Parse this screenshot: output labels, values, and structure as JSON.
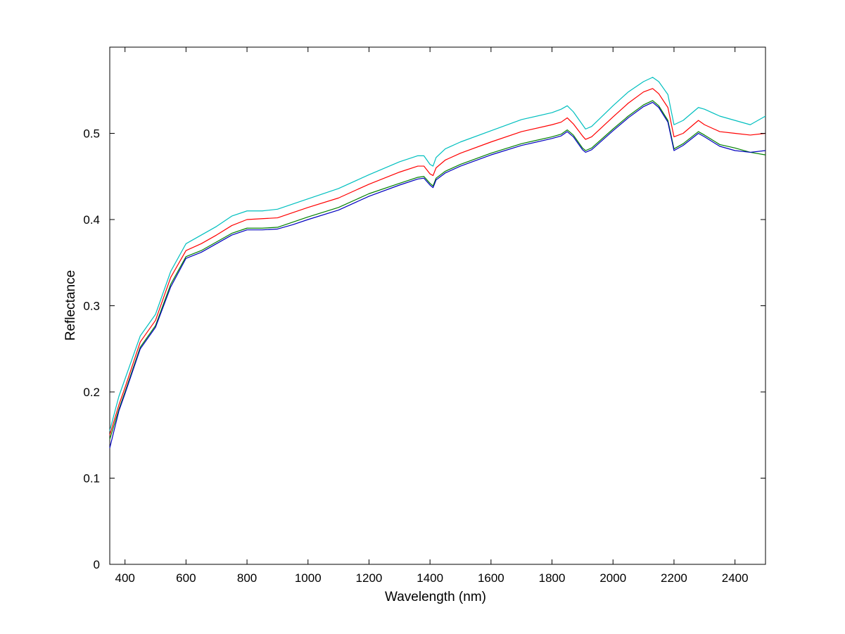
{
  "chart_data": {
    "type": "line",
    "title": "",
    "xlabel": "Wavelength (nm)",
    "ylabel": "Reflectance",
    "xlim": [
      350,
      2500
    ],
    "ylim": [
      0,
      0.6
    ],
    "xticks": [
      400,
      600,
      800,
      1000,
      1200,
      1400,
      1600,
      1800,
      2000,
      2200,
      2400
    ],
    "xtick_labels": [
      "400",
      "600",
      "800",
      "1000",
      "1200",
      "1400",
      "1600",
      "1800",
      "2000",
      "2200",
      "2400"
    ],
    "yticks": [
      0,
      0.1,
      0.2,
      0.3,
      0.4,
      0.5
    ],
    "ytick_labels": [
      "0",
      "0.1",
      "0.2",
      "0.3",
      "0.4",
      "0.5"
    ],
    "grid": false,
    "legend": "none",
    "series": [
      {
        "color": "#00bfbf",
        "x": [
          350,
          380,
          400,
          450,
          500,
          550,
          600,
          650,
          700,
          750,
          800,
          850,
          900,
          950,
          1000,
          1100,
          1200,
          1300,
          1360,
          1380,
          1400,
          1410,
          1420,
          1450,
          1500,
          1600,
          1700,
          1800,
          1830,
          1850,
          1870,
          1900,
          1910,
          1930,
          2000,
          2050,
          2100,
          2130,
          2150,
          2180,
          2200,
          2230,
          2280,
          2300,
          2350,
          2400,
          2450,
          2500
        ],
        "y": [
          0.155,
          0.195,
          0.215,
          0.265,
          0.29,
          0.34,
          0.372,
          0.382,
          0.392,
          0.404,
          0.41,
          0.41,
          0.412,
          0.418,
          0.424,
          0.436,
          0.452,
          0.467,
          0.474,
          0.474,
          0.464,
          0.462,
          0.472,
          0.482,
          0.49,
          0.503,
          0.516,
          0.524,
          0.528,
          0.532,
          0.525,
          0.51,
          0.505,
          0.508,
          0.532,
          0.548,
          0.56,
          0.565,
          0.56,
          0.545,
          0.51,
          0.515,
          0.53,
          0.528,
          0.52,
          0.515,
          0.51,
          0.52
        ]
      },
      {
        "color": "#ff0000",
        "x": [
          350,
          380,
          400,
          450,
          500,
          550,
          600,
          650,
          700,
          750,
          800,
          850,
          900,
          950,
          1000,
          1100,
          1200,
          1300,
          1360,
          1380,
          1400,
          1410,
          1420,
          1450,
          1500,
          1600,
          1700,
          1800,
          1830,
          1850,
          1870,
          1900,
          1910,
          1930,
          2000,
          2050,
          2100,
          2130,
          2150,
          2180,
          2200,
          2230,
          2280,
          2300,
          2350,
          2400,
          2450,
          2500
        ],
        "y": [
          0.15,
          0.185,
          0.205,
          0.258,
          0.283,
          0.333,
          0.364,
          0.372,
          0.382,
          0.393,
          0.4,
          0.401,
          0.402,
          0.408,
          0.414,
          0.425,
          0.441,
          0.455,
          0.462,
          0.462,
          0.453,
          0.451,
          0.46,
          0.469,
          0.477,
          0.49,
          0.502,
          0.51,
          0.513,
          0.518,
          0.511,
          0.497,
          0.493,
          0.496,
          0.519,
          0.535,
          0.548,
          0.552,
          0.546,
          0.53,
          0.496,
          0.5,
          0.515,
          0.51,
          0.502,
          0.5,
          0.498,
          0.5
        ]
      },
      {
        "color": "#008000",
        "x": [
          350,
          380,
          400,
          450,
          500,
          550,
          600,
          650,
          700,
          750,
          800,
          850,
          900,
          950,
          1000,
          1100,
          1200,
          1300,
          1360,
          1380,
          1400,
          1410,
          1420,
          1450,
          1500,
          1600,
          1700,
          1800,
          1830,
          1850,
          1870,
          1900,
          1910,
          1930,
          2000,
          2050,
          2100,
          2130,
          2150,
          2180,
          2200,
          2230,
          2280,
          2300,
          2350,
          2400,
          2450,
          2500
        ],
        "y": [
          0.145,
          0.18,
          0.2,
          0.252,
          0.277,
          0.325,
          0.357,
          0.364,
          0.374,
          0.384,
          0.39,
          0.39,
          0.391,
          0.397,
          0.403,
          0.414,
          0.43,
          0.442,
          0.449,
          0.45,
          0.442,
          0.439,
          0.448,
          0.456,
          0.464,
          0.477,
          0.488,
          0.496,
          0.499,
          0.504,
          0.498,
          0.483,
          0.48,
          0.483,
          0.505,
          0.52,
          0.533,
          0.538,
          0.532,
          0.515,
          0.482,
          0.488,
          0.502,
          0.498,
          0.487,
          0.483,
          0.478,
          0.475
        ]
      },
      {
        "color": "#0000bf",
        "x": [
          350,
          380,
          400,
          450,
          500,
          550,
          600,
          650,
          700,
          750,
          800,
          850,
          900,
          950,
          1000,
          1100,
          1200,
          1300,
          1360,
          1380,
          1400,
          1410,
          1420,
          1450,
          1500,
          1600,
          1700,
          1800,
          1830,
          1850,
          1870,
          1900,
          1910,
          1930,
          2000,
          2050,
          2100,
          2130,
          2150,
          2180,
          2200,
          2230,
          2280,
          2300,
          2350,
          2400,
          2450,
          2500
        ],
        "y": [
          0.135,
          0.178,
          0.198,
          0.25,
          0.275,
          0.322,
          0.355,
          0.362,
          0.372,
          0.382,
          0.388,
          0.388,
          0.389,
          0.394,
          0.4,
          0.411,
          0.427,
          0.44,
          0.447,
          0.448,
          0.44,
          0.437,
          0.446,
          0.454,
          0.462,
          0.475,
          0.486,
          0.494,
          0.497,
          0.502,
          0.496,
          0.481,
          0.478,
          0.481,
          0.503,
          0.518,
          0.531,
          0.536,
          0.53,
          0.513,
          0.48,
          0.486,
          0.5,
          0.496,
          0.485,
          0.48,
          0.478,
          0.48
        ]
      }
    ]
  }
}
